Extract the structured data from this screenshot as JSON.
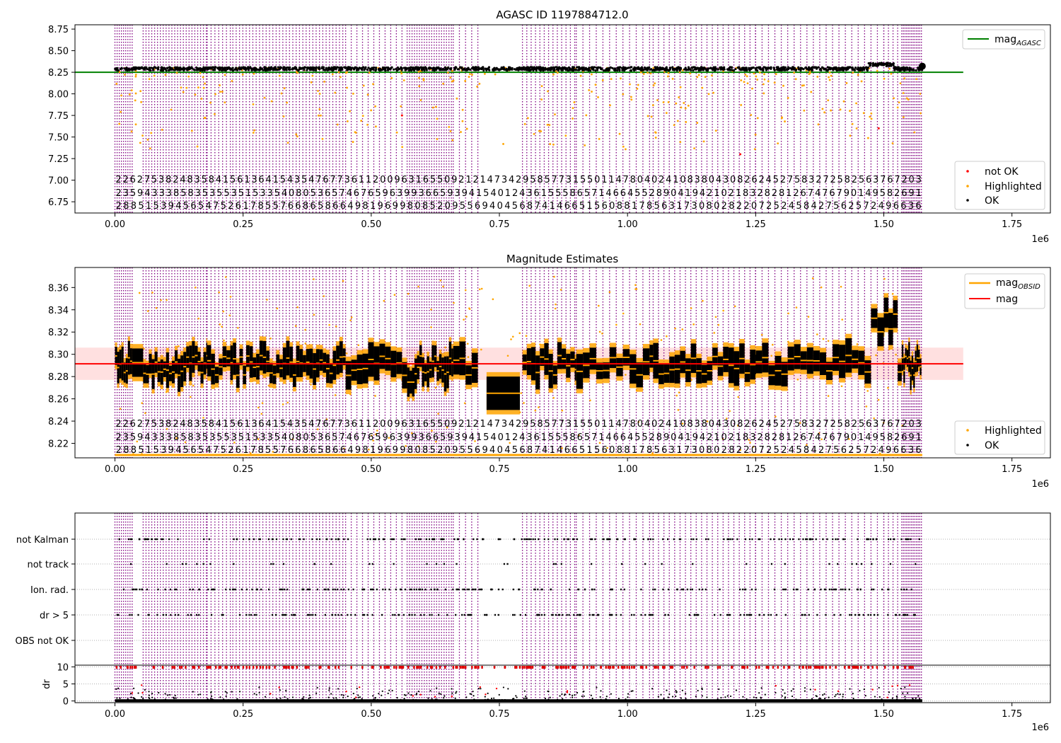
{
  "chart_data": [
    {
      "type": "scatter",
      "title": "AGASC ID 1197884712.0",
      "x_axis": {
        "ticks": [
          0,
          0.25,
          0.5,
          0.75,
          1.0,
          1.25,
          1.5,
          1.75
        ],
        "tick_labels": [
          "0.00",
          "0.25",
          "0.50",
          "0.75",
          "1.00",
          "1.25",
          "1.50",
          "1.75"
        ],
        "offset_label": "1e6",
        "xlim": [
          -0.078,
          1.825
        ]
      },
      "y_axis": {
        "ylim": [
          6.62,
          8.8
        ],
        "ticks": [
          6.75,
          7.0,
          7.25,
          7.5,
          7.75,
          8.0,
          8.25,
          8.5,
          8.75
        ],
        "tick_labels": [
          "6.75",
          "7.00",
          "7.25",
          "7.50",
          "7.75",
          "8.00",
          "8.25",
          "8.50",
          "8.75"
        ]
      },
      "reference_line": {
        "name": "mag_AGASC",
        "y": 8.25,
        "x_range": [
          -0.078,
          1.655
        ],
        "color": "#008000"
      },
      "legend_upper": {
        "placement": "upper right",
        "entries": [
          {
            "label": "mag",
            "subscript": "AGASC",
            "color": "#008000",
            "kind": "line"
          }
        ]
      },
      "legend_lower": {
        "placement": "lower right",
        "entries": [
          {
            "label": "not OK",
            "color": "#ff0000",
            "kind": "point"
          },
          {
            "label": "Highlighted",
            "color": "#ffa500",
            "kind": "point"
          },
          {
            "label": "OK",
            "color": "#000000",
            "kind": "point"
          }
        ]
      },
      "series": [
        {
          "name": "OK",
          "color": "#000000",
          "y_center": 8.29,
          "y_spread": 0.02
        },
        {
          "name": "Highlighted",
          "color": "#ffa500",
          "y_range": [
            7.2,
            8.3
          ]
        },
        {
          "name": "not OK",
          "color": "#ff0000",
          "points": [
            [
              0.56,
              7.75
            ],
            [
              1.22,
              7.3
            ],
            [
              1.49,
              7.6
            ]
          ]
        }
      ],
      "grid": false
    },
    {
      "type": "scatter",
      "title": "Magnitude Estimates",
      "x_axis": {
        "ticks": [
          0,
          0.25,
          0.5,
          0.75,
          1.0,
          1.25,
          1.5,
          1.75
        ],
        "tick_labels": [
          "0.00",
          "0.25",
          "0.50",
          "0.75",
          "1.00",
          "1.25",
          "1.50",
          "1.75"
        ],
        "offset_label": "1e6",
        "xlim": [
          -0.078,
          1.825
        ]
      },
      "y_axis": {
        "ylim": [
          8.207,
          8.378
        ],
        "ticks": [
          8.22,
          8.24,
          8.26,
          8.28,
          8.3,
          8.32,
          8.34,
          8.36
        ],
        "tick_labels": [
          "8.22",
          "8.24",
          "8.26",
          "8.28",
          "8.30",
          "8.32",
          "8.34",
          "8.36"
        ]
      },
      "reference_line": {
        "name": "mag",
        "y": 8.2915,
        "band": [
          8.277,
          8.306
        ],
        "x_range": [
          -0.078,
          1.655
        ],
        "color": "#ff0000"
      },
      "legend_upper": {
        "placement": "upper right",
        "entries": [
          {
            "label": "mag",
            "subscript": "OBSID",
            "color": "#ffa500",
            "kind": "line"
          },
          {
            "label": "mag",
            "color": "#ff0000",
            "kind": "line"
          }
        ]
      },
      "legend_lower": {
        "placement": "lower right",
        "entries": [
          {
            "label": "Highlighted",
            "color": "#ffa500",
            "kind": "point"
          },
          {
            "label": "OK",
            "color": "#000000",
            "kind": "point"
          }
        ]
      },
      "grid": false
    },
    {
      "type": "scatter",
      "x_axis": {
        "ticks": [
          0,
          0.25,
          0.5,
          0.75,
          1.0,
          1.25,
          1.5,
          1.75
        ],
        "tick_labels": [
          "0.00",
          "0.25",
          "0.50",
          "0.75",
          "1.00",
          "1.25",
          "1.50",
          "1.75"
        ],
        "offset_label": "1e6",
        "xlim": [
          -0.078,
          1.825
        ]
      },
      "flag_rows": [
        "not Kalman",
        "not track",
        "Ion. rad.",
        "dr > 5",
        "OBS not OK"
      ],
      "dr_axis": {
        "ylabel": "dr",
        "ticks": [
          0,
          5,
          10
        ],
        "tick_labels": [
          "0",
          "5",
          "10"
        ],
        "ylim": [
          -0.5,
          10.5
        ]
      },
      "grid": "horizontal dotted"
    }
  ],
  "obsid_annotations": {
    "row1": [
      "2",
      "2",
      "6",
      "2",
      "7",
      "5",
      "3",
      "8",
      "2",
      "4",
      "8",
      "3",
      "5",
      "8",
      "4",
      "1",
      "5",
      "6",
      "1",
      "3",
      "6",
      "4",
      "1",
      "5",
      "4",
      "3",
      "5",
      "4",
      "7",
      "6",
      "7",
      "7",
      "3",
      "6",
      "1",
      "1",
      "2",
      "0",
      "0",
      "9",
      "6",
      "3",
      "1",
      "6",
      "5",
      "5",
      "0",
      "9",
      "2",
      "1",
      "2",
      "1",
      "4",
      "7",
      "3",
      "4",
      "2",
      "9",
      "5",
      "8",
      "5",
      "7",
      "7",
      "3",
      "1",
      "5",
      "5",
      "0",
      "1",
      "1",
      "4",
      "7",
      "8",
      "0",
      "4",
      "0",
      "2",
      "4",
      "1",
      "0",
      "8",
      "3",
      "8",
      "0",
      "4",
      "3",
      "0",
      "8",
      "2",
      "6",
      "2",
      "4",
      "5",
      "2",
      "7",
      "5",
      "8",
      "3",
      "2",
      "7",
      "2",
      "5",
      "8",
      "2",
      "5",
      "6",
      "3",
      "7",
      "6",
      "7",
      "2",
      "0",
      "3"
    ],
    "row2": [
      "2",
      "3",
      "5",
      "9",
      "4",
      "3",
      "3",
      "3",
      "8",
      "5",
      "8",
      "3",
      "5",
      "3",
      "5",
      "5",
      "3",
      "5",
      "1",
      "5",
      "3",
      "3",
      "5",
      "4",
      "0",
      "8",
      "0",
      "5",
      "3",
      "6",
      "5",
      "7",
      "4",
      "6",
      "7",
      "6",
      "5",
      "9",
      "6",
      "3",
      "9",
      "9",
      "3",
      "6",
      "6",
      "5",
      "9",
      "3",
      "9",
      "4",
      "1",
      "5",
      "4",
      "0",
      "1",
      "2",
      "4",
      "3",
      "6",
      "1",
      "5",
      "5",
      "5",
      "8",
      "6",
      "5",
      "7",
      "1",
      "4",
      "6",
      "6",
      "4",
      "5",
      "5",
      "2",
      "8",
      "9",
      "0",
      "4",
      "1",
      "9",
      "4",
      "2",
      "1",
      "0",
      "2",
      "1",
      "8",
      "3",
      "2",
      "8",
      "2",
      "8",
      "1",
      "2",
      "6",
      "7",
      "4",
      "7",
      "6",
      "7",
      "9",
      "0",
      "1",
      "4",
      "9",
      "5",
      "8",
      "2",
      "6",
      "9",
      "1"
    ],
    "row3": [
      "2",
      "8",
      "8",
      "5",
      "1",
      "5",
      "3",
      "9",
      "4",
      "5",
      "6",
      "5",
      "4",
      "7",
      "5",
      "2",
      "6",
      "1",
      "7",
      "8",
      "5",
      "5",
      "7",
      "6",
      "6",
      "8",
      "6",
      "5",
      "8",
      "6",
      "6",
      "4",
      "9",
      "8",
      "1",
      "9",
      "6",
      "9",
      "9",
      "8",
      "0",
      "8",
      "5",
      "2",
      "0",
      "9",
      "5",
      "5",
      "6",
      "9",
      "4",
      "0",
      "4",
      "5",
      "6",
      "8",
      "7",
      "4",
      "1",
      "4",
      "6",
      "6",
      "5",
      "1",
      "5",
      "6",
      "0",
      "8",
      "8",
      "1",
      "7",
      "8",
      "5",
      "6",
      "3",
      "1",
      "7",
      "3",
      "0",
      "8",
      "0",
      "2",
      "8",
      "2",
      "2",
      "0",
      "7",
      "2",
      "5",
      "2",
      "4",
      "5",
      "8",
      "4",
      "2",
      "7",
      "5",
      "6",
      "2",
      "5",
      "7",
      "2",
      "4",
      "9",
      "6",
      "6",
      "3",
      "6"
    ]
  }
}
